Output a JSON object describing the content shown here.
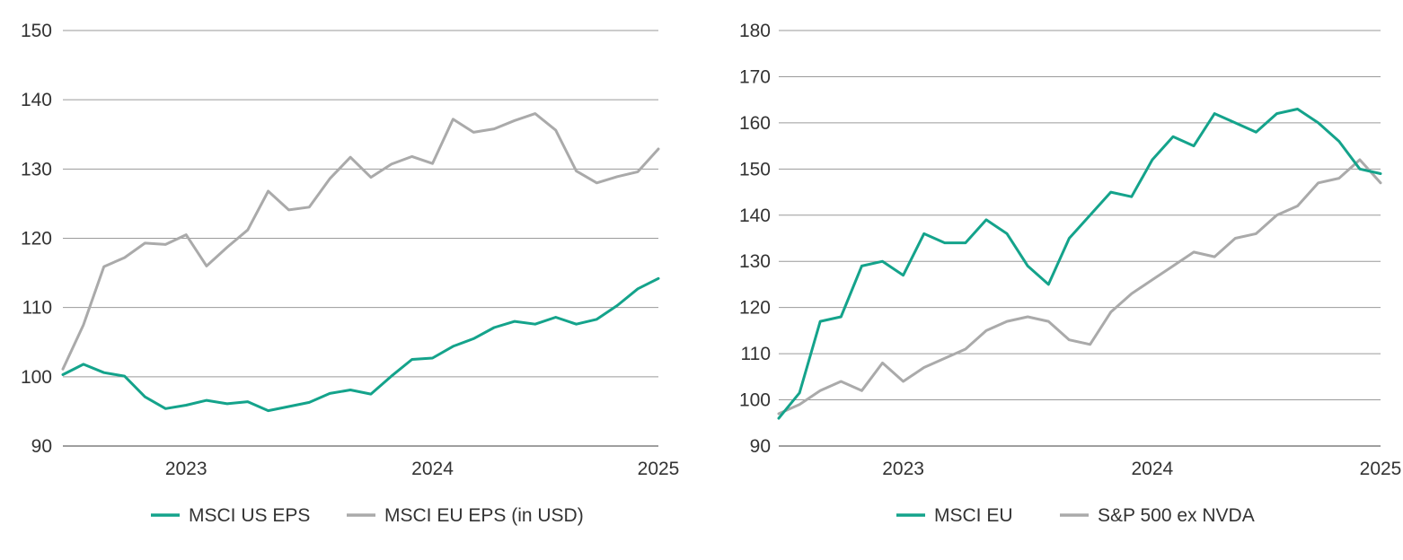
{
  "chart_data": [
    {
      "type": "line",
      "title": "",
      "xlabel": "",
      "ylabel": "",
      "ylim": [
        90,
        150
      ],
      "yticks": [
        90,
        100,
        110,
        120,
        130,
        140,
        150
      ],
      "xlim": [
        "2022-10",
        "2025-03"
      ],
      "xticks": [
        {
          "label": "2023",
          "x": "2023-04"
        },
        {
          "label": "2024",
          "x": "2024-04"
        },
        {
          "label": "2025",
          "x": "2025-03"
        }
      ],
      "grid": "horizontal",
      "legend_position": "bottom",
      "x": [
        "2022-10",
        "2022-11",
        "2022-12",
        "2023-01",
        "2023-02",
        "2023-03",
        "2023-04",
        "2023-05",
        "2023-06",
        "2023-07",
        "2023-08",
        "2023-09",
        "2023-10",
        "2023-11",
        "2023-12",
        "2024-01",
        "2024-02",
        "2024-03",
        "2024-04",
        "2024-05",
        "2024-06",
        "2024-07",
        "2024-08",
        "2024-09",
        "2024-10",
        "2024-11",
        "2024-12",
        "2025-01",
        "2025-02",
        "2025-03"
      ],
      "series": [
        {
          "name": "MSCI US EPS",
          "color": "#14a38b",
          "values": [
            100.3,
            101.8,
            100.6,
            100.1,
            97.1,
            95.4,
            95.9,
            96.6,
            96.1,
            96.4,
            95.1,
            95.7,
            96.3,
            97.6,
            98.1,
            97.5,
            100.1,
            102.5,
            102.7,
            104.4,
            105.5,
            107.1,
            108.0,
            107.6,
            108.6,
            107.6,
            108.3,
            110.3,
            112.7,
            114.2
          ]
        },
        {
          "name": "MSCI EU EPS (in USD)",
          "color": "#aaaaaa",
          "values": [
            101.1,
            107.5,
            115.9,
            117.2,
            119.3,
            119.1,
            120.5,
            116.0,
            118.7,
            121.2,
            126.8,
            124.1,
            124.5,
            128.6,
            131.7,
            128.8,
            130.7,
            131.8,
            130.8,
            137.2,
            135.3,
            135.8,
            137.0,
            138.0,
            135.6,
            129.7,
            128.0,
            128.9,
            129.6,
            132.9
          ]
        }
      ]
    },
    {
      "type": "line",
      "title": "",
      "xlabel": "",
      "ylabel": "",
      "ylim": [
        90,
        180
      ],
      "yticks": [
        90,
        100,
        110,
        120,
        130,
        140,
        150,
        160,
        170,
        180
      ],
      "xlim": [
        "2022-10",
        "2025-03"
      ],
      "xticks": [
        {
          "label": "2023",
          "x": "2023-04"
        },
        {
          "label": "2024",
          "x": "2024-04"
        },
        {
          "label": "2025",
          "x": "2025-03"
        }
      ],
      "grid": "horizontal",
      "legend_position": "bottom",
      "x": [
        "2022-10",
        "2022-11",
        "2022-12",
        "2023-01",
        "2023-02",
        "2023-03",
        "2023-04",
        "2023-05",
        "2023-06",
        "2023-07",
        "2023-08",
        "2023-09",
        "2023-10",
        "2023-11",
        "2023-12",
        "2024-01",
        "2024-02",
        "2024-03",
        "2024-04",
        "2024-05",
        "2024-06",
        "2024-07",
        "2024-08",
        "2024-09",
        "2024-10",
        "2024-11",
        "2024-12",
        "2025-01",
        "2025-02",
        "2025-03"
      ],
      "series": [
        {
          "name": "MSCI EU",
          "color": "#14a38b",
          "values": [
            96.0,
            101.5,
            117.0,
            118.0,
            129.0,
            130.0,
            127.0,
            136.0,
            134.0,
            134.0,
            139.0,
            136.0,
            129.0,
            125.0,
            135.0,
            140.0,
            145.0,
            144.0,
            152.0,
            157.0,
            155.0,
            162.0,
            160.0,
            158.0,
            162.0,
            163.0,
            160.0,
            156.0,
            150.0,
            149.0
          ]
        },
        {
          "name": "S&P 500 ex NVDA",
          "color": "#aaaaaa",
          "values": [
            97.0,
            99.0,
            102.0,
            104.0,
            102.0,
            108.0,
            104.0,
            107.0,
            109.0,
            111.0,
            115.0,
            117.0,
            118.0,
            117.0,
            113.0,
            112.0,
            119.0,
            123.0,
            126.0,
            129.0,
            132.0,
            131.0,
            135.0,
            136.0,
            140.0,
            142.0,
            147.0,
            148.0,
            152.0,
            147.0
          ]
        }
      ]
    }
  ]
}
